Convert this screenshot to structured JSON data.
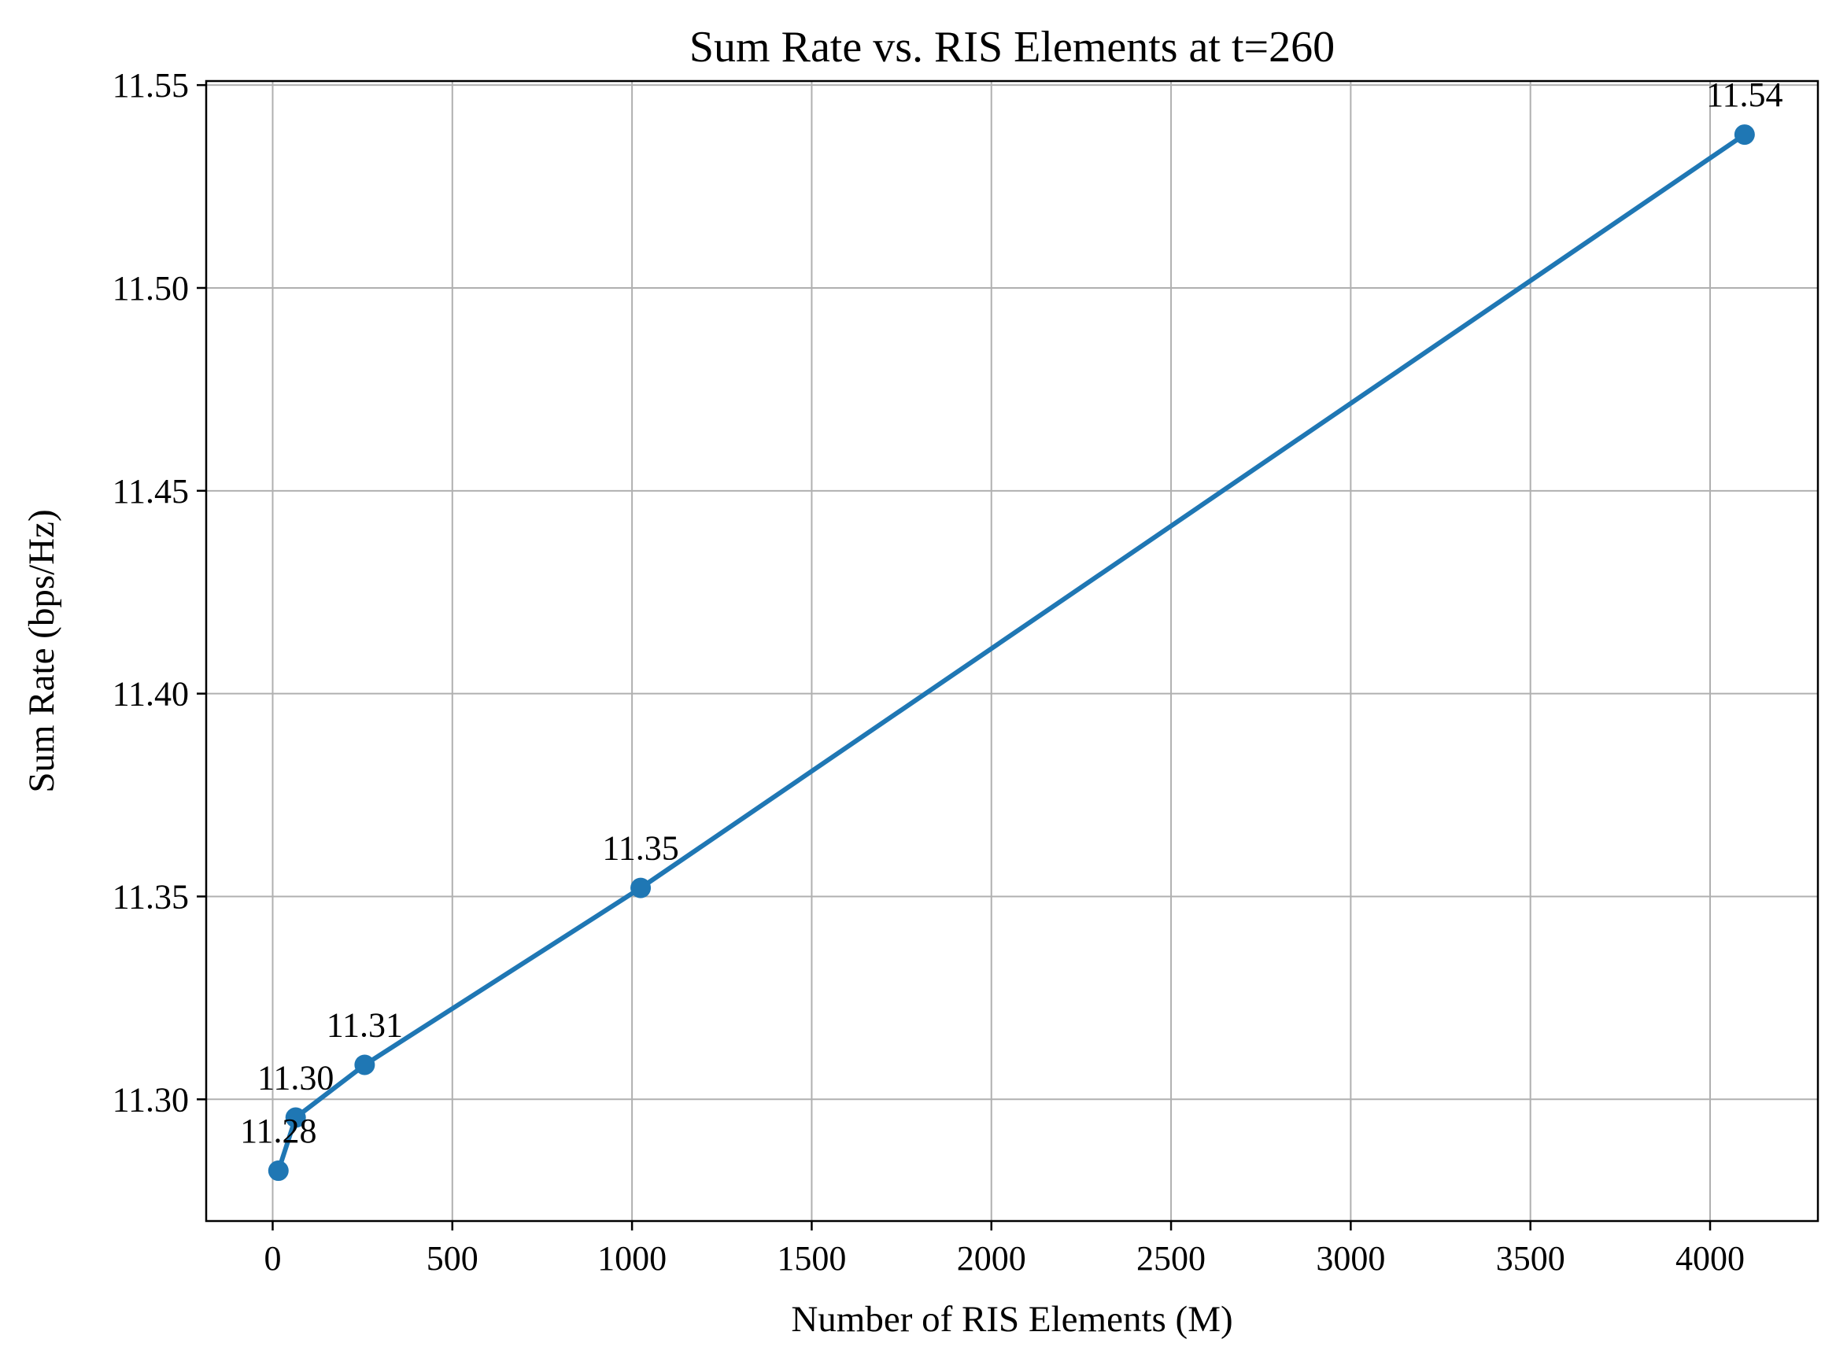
{
  "chart_data": {
    "type": "line",
    "title": "Sum Rate vs. RIS Elements at t=260",
    "xlabel": "Number of RIS Elements (M)",
    "ylabel": "Sum Rate (bps/Hz)",
    "xlim": [
      -185,
      4300
    ],
    "ylim": [
      11.27,
      11.551
    ],
    "xticks": [
      0,
      500,
      1000,
      1500,
      2000,
      2500,
      3000,
      3500,
      4000
    ],
    "xtick_labels": [
      "0",
      "500",
      "1000",
      "1500",
      "2000",
      "2500",
      "3000",
      "3500",
      "4000"
    ],
    "yticks": [
      11.3,
      11.35,
      11.4,
      11.45,
      11.5,
      11.55
    ],
    "ytick_labels": [
      "11.30",
      "11.35",
      "11.40",
      "11.45",
      "11.50",
      "11.55"
    ],
    "grid": true,
    "series": [
      {
        "color": "#1f77b4",
        "marker": "circle",
        "points": [
          {
            "x": 16,
            "y": 11.2824,
            "label": "11.28"
          },
          {
            "x": 64,
            "y": 11.2955,
            "label": "11.30"
          },
          {
            "x": 256,
            "y": 11.3085,
            "label": "11.31"
          },
          {
            "x": 1024,
            "y": 11.3521,
            "label": "11.35"
          },
          {
            "x": 4096,
            "y": 11.5378,
            "label": "11.54"
          }
        ]
      }
    ]
  }
}
